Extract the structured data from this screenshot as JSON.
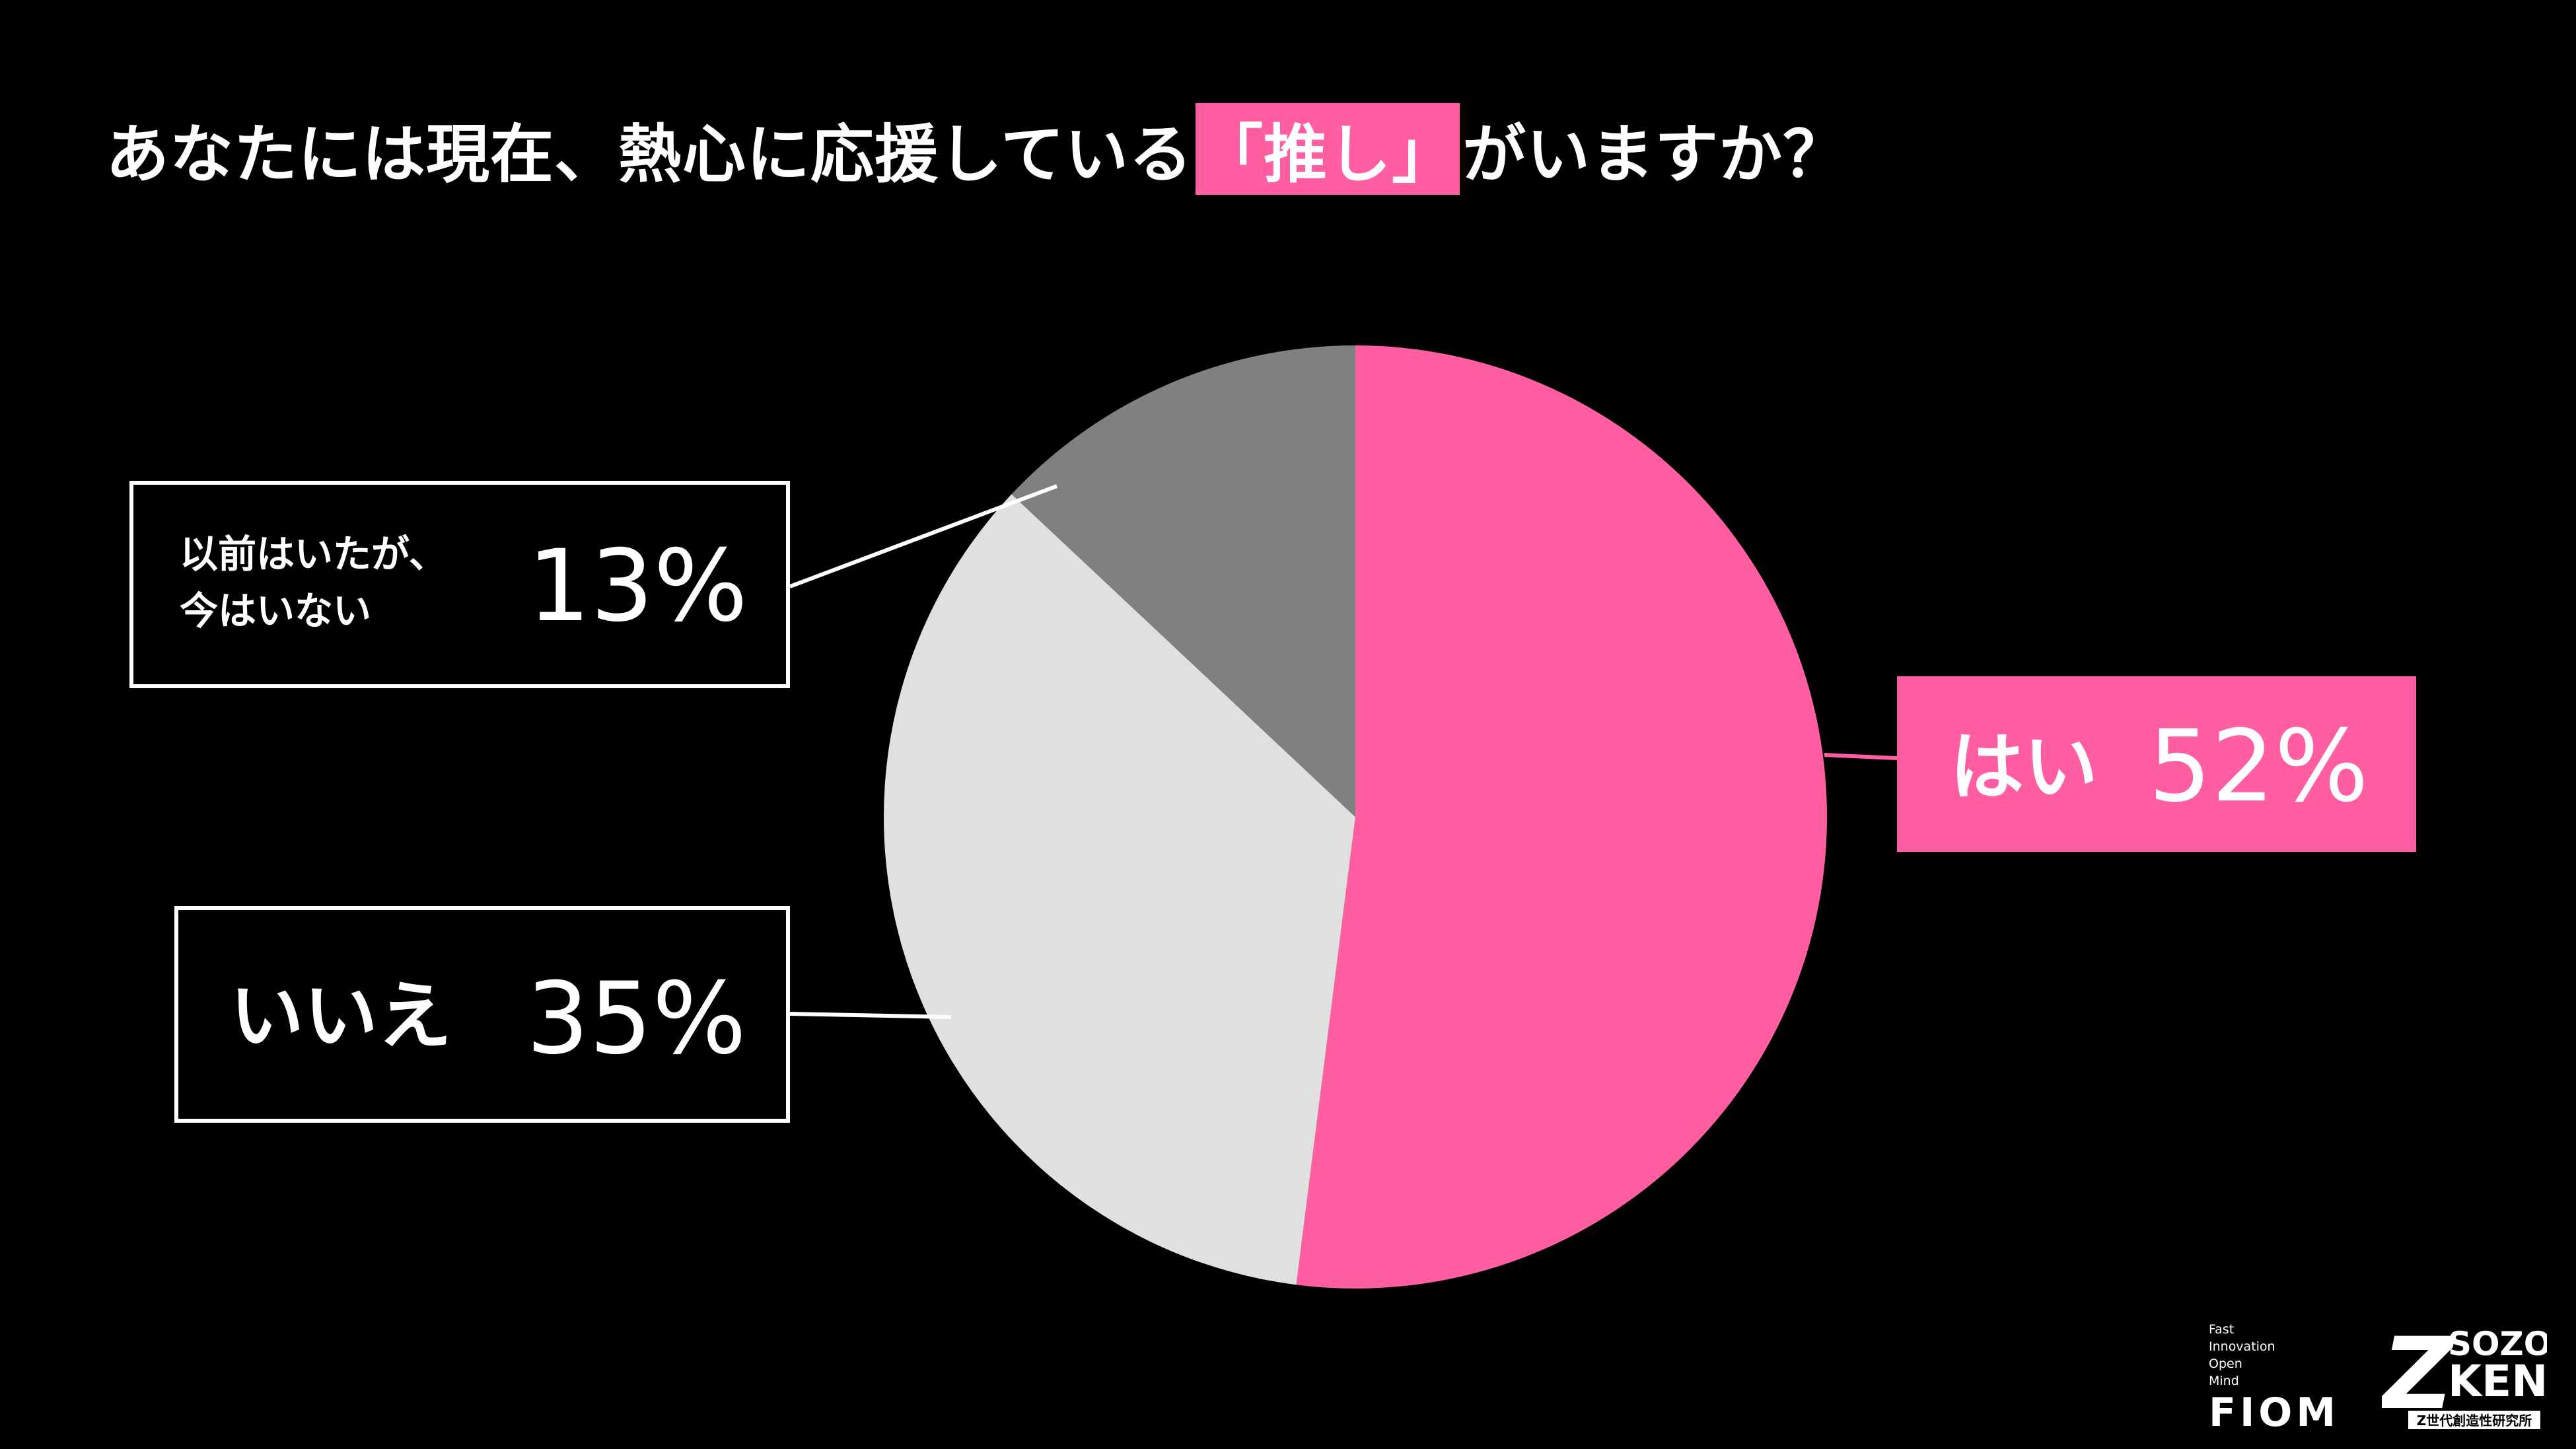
{
  "title": {
    "before": "あなたには現在、熱心に応援している",
    "highlight": "「推し」",
    "after": "がいますか？"
  },
  "colors": {
    "accent": "#ff5fa2",
    "background": "#000000",
    "slice_yes": "#ff5fa2",
    "slice_no": "#e0e0e0",
    "slice_past": "#808080"
  },
  "labels": {
    "yes": {
      "text": "はい",
      "pct": "52%"
    },
    "no": {
      "text": "いいえ",
      "pct": "35%"
    },
    "past": {
      "line1": "以前はいたが、",
      "line2": "今はいない",
      "pct": "13%"
    }
  },
  "logos": {
    "fiom": {
      "line1": "Fast",
      "line2": "Innovation",
      "line3": "Open",
      "line4": "Mind",
      "name": "FIOM"
    },
    "zken": {
      "mark": "Z",
      "line1": "SOZO",
      "line2": "KEN",
      "tagline": "Z世代創造性研究所"
    }
  },
  "chart_data": {
    "type": "pie",
    "title": "あなたには現在、熱心に応援している「推し」がいますか？",
    "start": "12 o'clock",
    "direction": "clockwise",
    "slices": [
      {
        "label": "はい",
        "value": 52,
        "color": "#ff5fa2"
      },
      {
        "label": "いいえ",
        "value": 35,
        "color": "#e0e0e0"
      },
      {
        "label": "以前はいたが、今はいない",
        "value": 13,
        "color": "#808080"
      }
    ]
  }
}
